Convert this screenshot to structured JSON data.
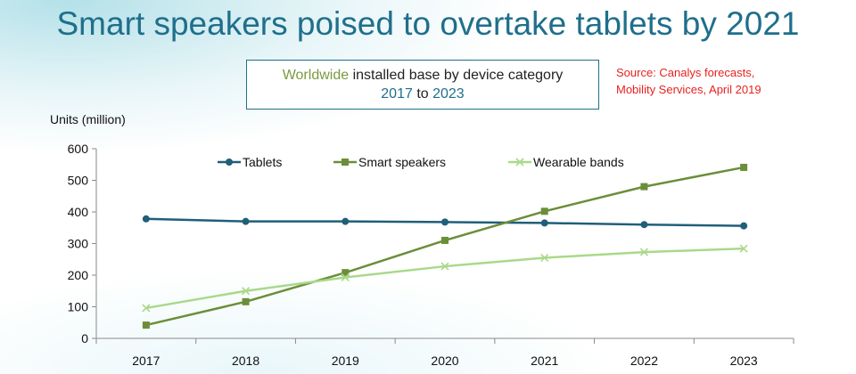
{
  "slide": {
    "title": "Smart speakers poised to overtake tablets by 2021",
    "subtitle_word1": "Worldwide",
    "subtitle_rest1": " installed base by device category",
    "subtitle_year_start": "2017",
    "subtitle_to": " to ",
    "subtitle_year_end": "2023",
    "source_line1": "Source: Canalys forecasts,",
    "source_line2": "Mobility Services, April 2019"
  },
  "colors": {
    "tablets": "#1f5f7a",
    "smart_speakers": "#6b8e3a",
    "wearable_bands": "#a9d98a",
    "title": "#1f6f8b",
    "source": "#e8211f"
  },
  "chart_data": {
    "type": "line",
    "ylabel": "Units (million)",
    "xlabel": "",
    "categories": [
      "2017",
      "2018",
      "2019",
      "2020",
      "2021",
      "2022",
      "2023"
    ],
    "ylim": [
      0,
      600
    ],
    "yticks": [
      0,
      100,
      200,
      300,
      400,
      500,
      600
    ],
    "grid": false,
    "legend_position": "top",
    "series": [
      {
        "name": "Tablets",
        "marker": "circle",
        "values": [
          378,
          370,
          370,
          368,
          365,
          360,
          356
        ]
      },
      {
        "name": "Smart speakers",
        "marker": "square",
        "values": [
          42,
          116,
          208,
          310,
          402,
          480,
          541
        ]
      },
      {
        "name": "Wearable bands",
        "marker": "x",
        "values": [
          96,
          150,
          193,
          228,
          255,
          273,
          284
        ]
      }
    ]
  }
}
